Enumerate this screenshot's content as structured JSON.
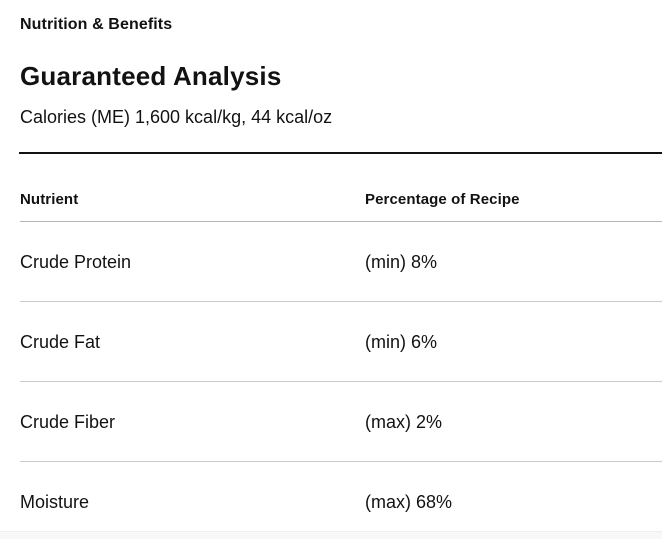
{
  "section_label": "Nutrition & Benefits",
  "heading": "Guaranteed Analysis",
  "calories_line": "Calories (ME) 1,600 kcal/kg, 44 kcal/oz",
  "table": {
    "columns": [
      "Nutrient",
      "Percentage of Recipe"
    ],
    "rows": [
      {
        "nutrient": "Crude Protein",
        "value": "(min) 8%"
      },
      {
        "nutrient": "Crude Fat",
        "value": "(min) 6%"
      },
      {
        "nutrient": "Crude Fiber",
        "value": "(max) 2%"
      },
      {
        "nutrient": "Moisture",
        "value": "(max) 68%"
      }
    ]
  },
  "colors": {
    "text": "#121212",
    "rule_strong": "#121212",
    "rule_header": "#b5b5b5",
    "rule_row": "#c9c9c9",
    "footer_strip": "#f8f8f8"
  }
}
